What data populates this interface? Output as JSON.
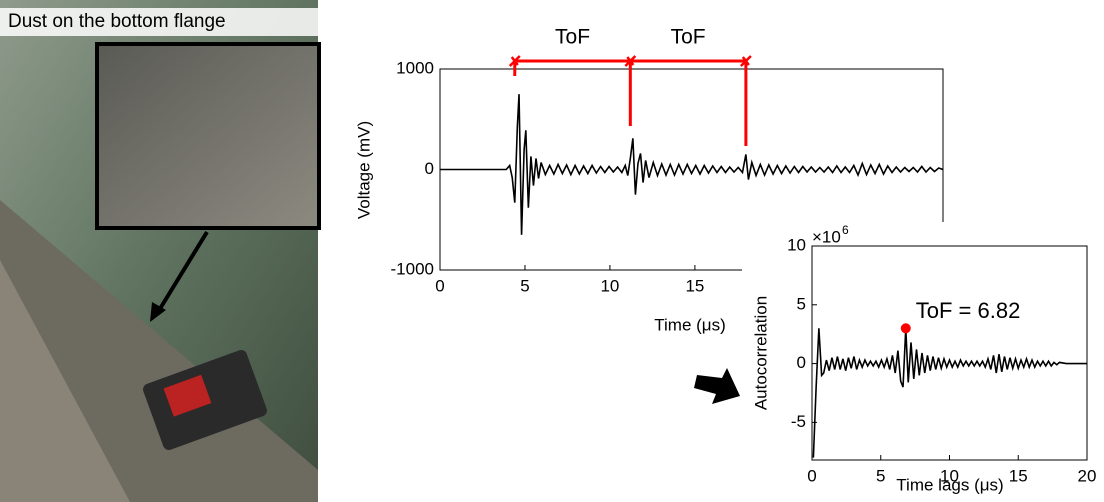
{
  "photo": {
    "caption": "Dust on the bottom flange"
  },
  "chart_data": [
    {
      "type": "line",
      "xlabel": "Time (μs)",
      "ylabel": "Voltage (mV)",
      "xlim": [
        0,
        29.6
      ],
      "ylim": [
        -1000,
        1000
      ],
      "xticks": [
        0,
        5,
        10,
        15
      ],
      "yticks": [
        -1000,
        0,
        1000
      ],
      "color": "#000000",
      "tof_markers": [
        4.4,
        11.2,
        18.0
      ],
      "annotations": [
        "ToF",
        "ToF"
      ],
      "annotation_color": "#ff0000",
      "x": [
        0,
        3.9,
        4.1,
        4.25,
        4.4,
        4.55,
        4.65,
        4.8,
        4.95,
        5.05,
        5.2,
        5.35,
        5.5,
        5.65,
        5.8,
        5.95,
        6.2,
        6.45,
        6.7,
        6.95,
        7.2,
        7.45,
        7.7,
        7.95,
        8.2,
        8.45,
        8.7,
        8.95,
        9.2,
        9.45,
        9.7,
        9.95,
        10.2,
        10.45,
        10.7,
        10.9,
        11.05,
        11.2,
        11.35,
        11.5,
        11.65,
        11.8,
        11.95,
        12.1,
        12.3,
        12.55,
        12.8,
        13.05,
        13.3,
        13.55,
        13.8,
        14.05,
        14.3,
        14.55,
        14.8,
        15.05,
        15.3,
        15.55,
        15.8,
        16.05,
        16.3,
        16.55,
        16.8,
        17.05,
        17.3,
        17.55,
        17.8,
        18.0,
        18.15,
        18.35,
        18.6,
        18.85,
        19.1,
        19.35,
        19.6,
        19.85,
        20.1,
        20.35,
        20.6,
        20.85,
        21.1,
        21.35,
        21.6,
        21.85,
        22.1,
        22.35,
        22.6,
        22.85,
        23.1,
        23.35,
        23.6,
        23.85,
        24.1,
        24.35,
        24.6,
        24.85,
        25.1,
        25.35,
        25.6,
        25.85,
        26.1,
        26.35,
        26.6,
        26.85,
        27.1,
        27.35,
        27.6,
        27.85,
        28.1,
        28.35,
        28.6,
        28.85,
        29.1,
        29.35,
        29.6
      ],
      "values": [
        0,
        0,
        40,
        -80,
        -330,
        420,
        750,
        -650,
        200,
        390,
        -380,
        130,
        -160,
        110,
        -90,
        70,
        -50,
        40,
        -45,
        50,
        -40,
        45,
        -50,
        40,
        -45,
        35,
        -40,
        40,
        -35,
        30,
        -30,
        30,
        -25,
        25,
        -30,
        40,
        -60,
        110,
        310,
        -250,
        60,
        160,
        -130,
        90,
        -80,
        70,
        -60,
        55,
        -55,
        50,
        -55,
        50,
        -45,
        50,
        -40,
        40,
        -45,
        40,
        -35,
        35,
        -30,
        30,
        -30,
        25,
        -25,
        20,
        -30,
        150,
        -100,
        70,
        -60,
        50,
        -55,
        45,
        -45,
        40,
        -40,
        35,
        -35,
        30,
        -30,
        30,
        -25,
        25,
        -25,
        20,
        -25,
        25,
        -30,
        35,
        -30,
        25,
        -30,
        40,
        -55,
        60,
        -50,
        45,
        -40,
        50,
        -45,
        35,
        -30,
        25,
        -25,
        20,
        -20,
        20,
        -25,
        30,
        -25,
        20,
        -20,
        15,
        0
      ]
    },
    {
      "type": "line",
      "xlabel": "Time lags (μs)",
      "ylabel": "Autocorrelation",
      "y_scale_label": "×10",
      "y_scale_exponent": "6",
      "xlim": [
        0,
        20
      ],
      "ylim": [
        -8.2,
        10
      ],
      "xticks": [
        0,
        5,
        10,
        15,
        20
      ],
      "yticks": [
        -5,
        0,
        5,
        10
      ],
      "color": "#000000",
      "annotation": {
        "text": "ToF = 6.82",
        "x": 6.82,
        "y": 3,
        "color": "#ff0000"
      },
      "x": [
        0.1,
        0.3,
        0.5,
        0.7,
        0.85,
        1.05,
        1.25,
        1.45,
        1.65,
        1.85,
        2.05,
        2.25,
        2.45,
        2.65,
        2.85,
        3.05,
        3.25,
        3.45,
        3.65,
        3.85,
        4.05,
        4.25,
        4.45,
        4.65,
        4.85,
        5.05,
        5.25,
        5.45,
        5.65,
        5.85,
        6.05,
        6.25,
        6.45,
        6.62,
        6.82,
        7.0,
        7.2,
        7.4,
        7.6,
        7.8,
        8.0,
        8.2,
        8.4,
        8.6,
        8.8,
        9.0,
        9.2,
        9.4,
        9.6,
        9.8,
        10.0,
        10.2,
        10.4,
        10.6,
        10.8,
        11.0,
        11.2,
        11.4,
        11.6,
        11.8,
        12.0,
        12.2,
        12.4,
        12.6,
        12.8,
        13.0,
        13.2,
        13.4,
        13.6,
        13.8,
        14.0,
        14.2,
        14.4,
        14.6,
        14.8,
        15.0,
        15.2,
        15.4,
        15.6,
        15.8,
        16.0,
        16.2,
        16.4,
        16.6,
        16.8,
        17.0,
        17.2,
        17.4,
        17.6,
        17.8,
        18.0,
        18.5,
        19.0,
        20.0
      ],
      "values": [
        -8,
        -2,
        3,
        -1,
        -0.8,
        0.3,
        -0.6,
        0.5,
        -0.5,
        0.6,
        -0.5,
        0.4,
        -0.6,
        0.5,
        -0.4,
        0.6,
        -0.5,
        0.3,
        -0.3,
        0.3,
        -0.2,
        0.2,
        -0.2,
        0.2,
        -0.3,
        0.3,
        -0.3,
        0.4,
        -0.5,
        0.7,
        -0.8,
        1.1,
        -1.5,
        -2,
        3,
        -1.6,
        1.8,
        -1.3,
        1.2,
        -1,
        0.9,
        -0.8,
        0.7,
        -0.6,
        0.6,
        -0.5,
        0.5,
        -0.4,
        0.4,
        -0.3,
        0.3,
        -0.3,
        0.2,
        -0.3,
        0.3,
        -0.2,
        0.2,
        -0.2,
        0.2,
        -0.2,
        0.2,
        -0.2,
        0.2,
        -0.3,
        0.4,
        -0.5,
        0.7,
        -0.8,
        0.8,
        -0.7,
        0.6,
        -0.5,
        0.5,
        -0.4,
        0.4,
        -0.4,
        0.3,
        -0.3,
        0.4,
        -0.3,
        0.3,
        -0.3,
        0.2,
        -0.2,
        0.2,
        -0.2,
        0.2,
        -0.2,
        0.1,
        -0.1,
        0.1,
        0,
        0,
        0
      ]
    }
  ]
}
